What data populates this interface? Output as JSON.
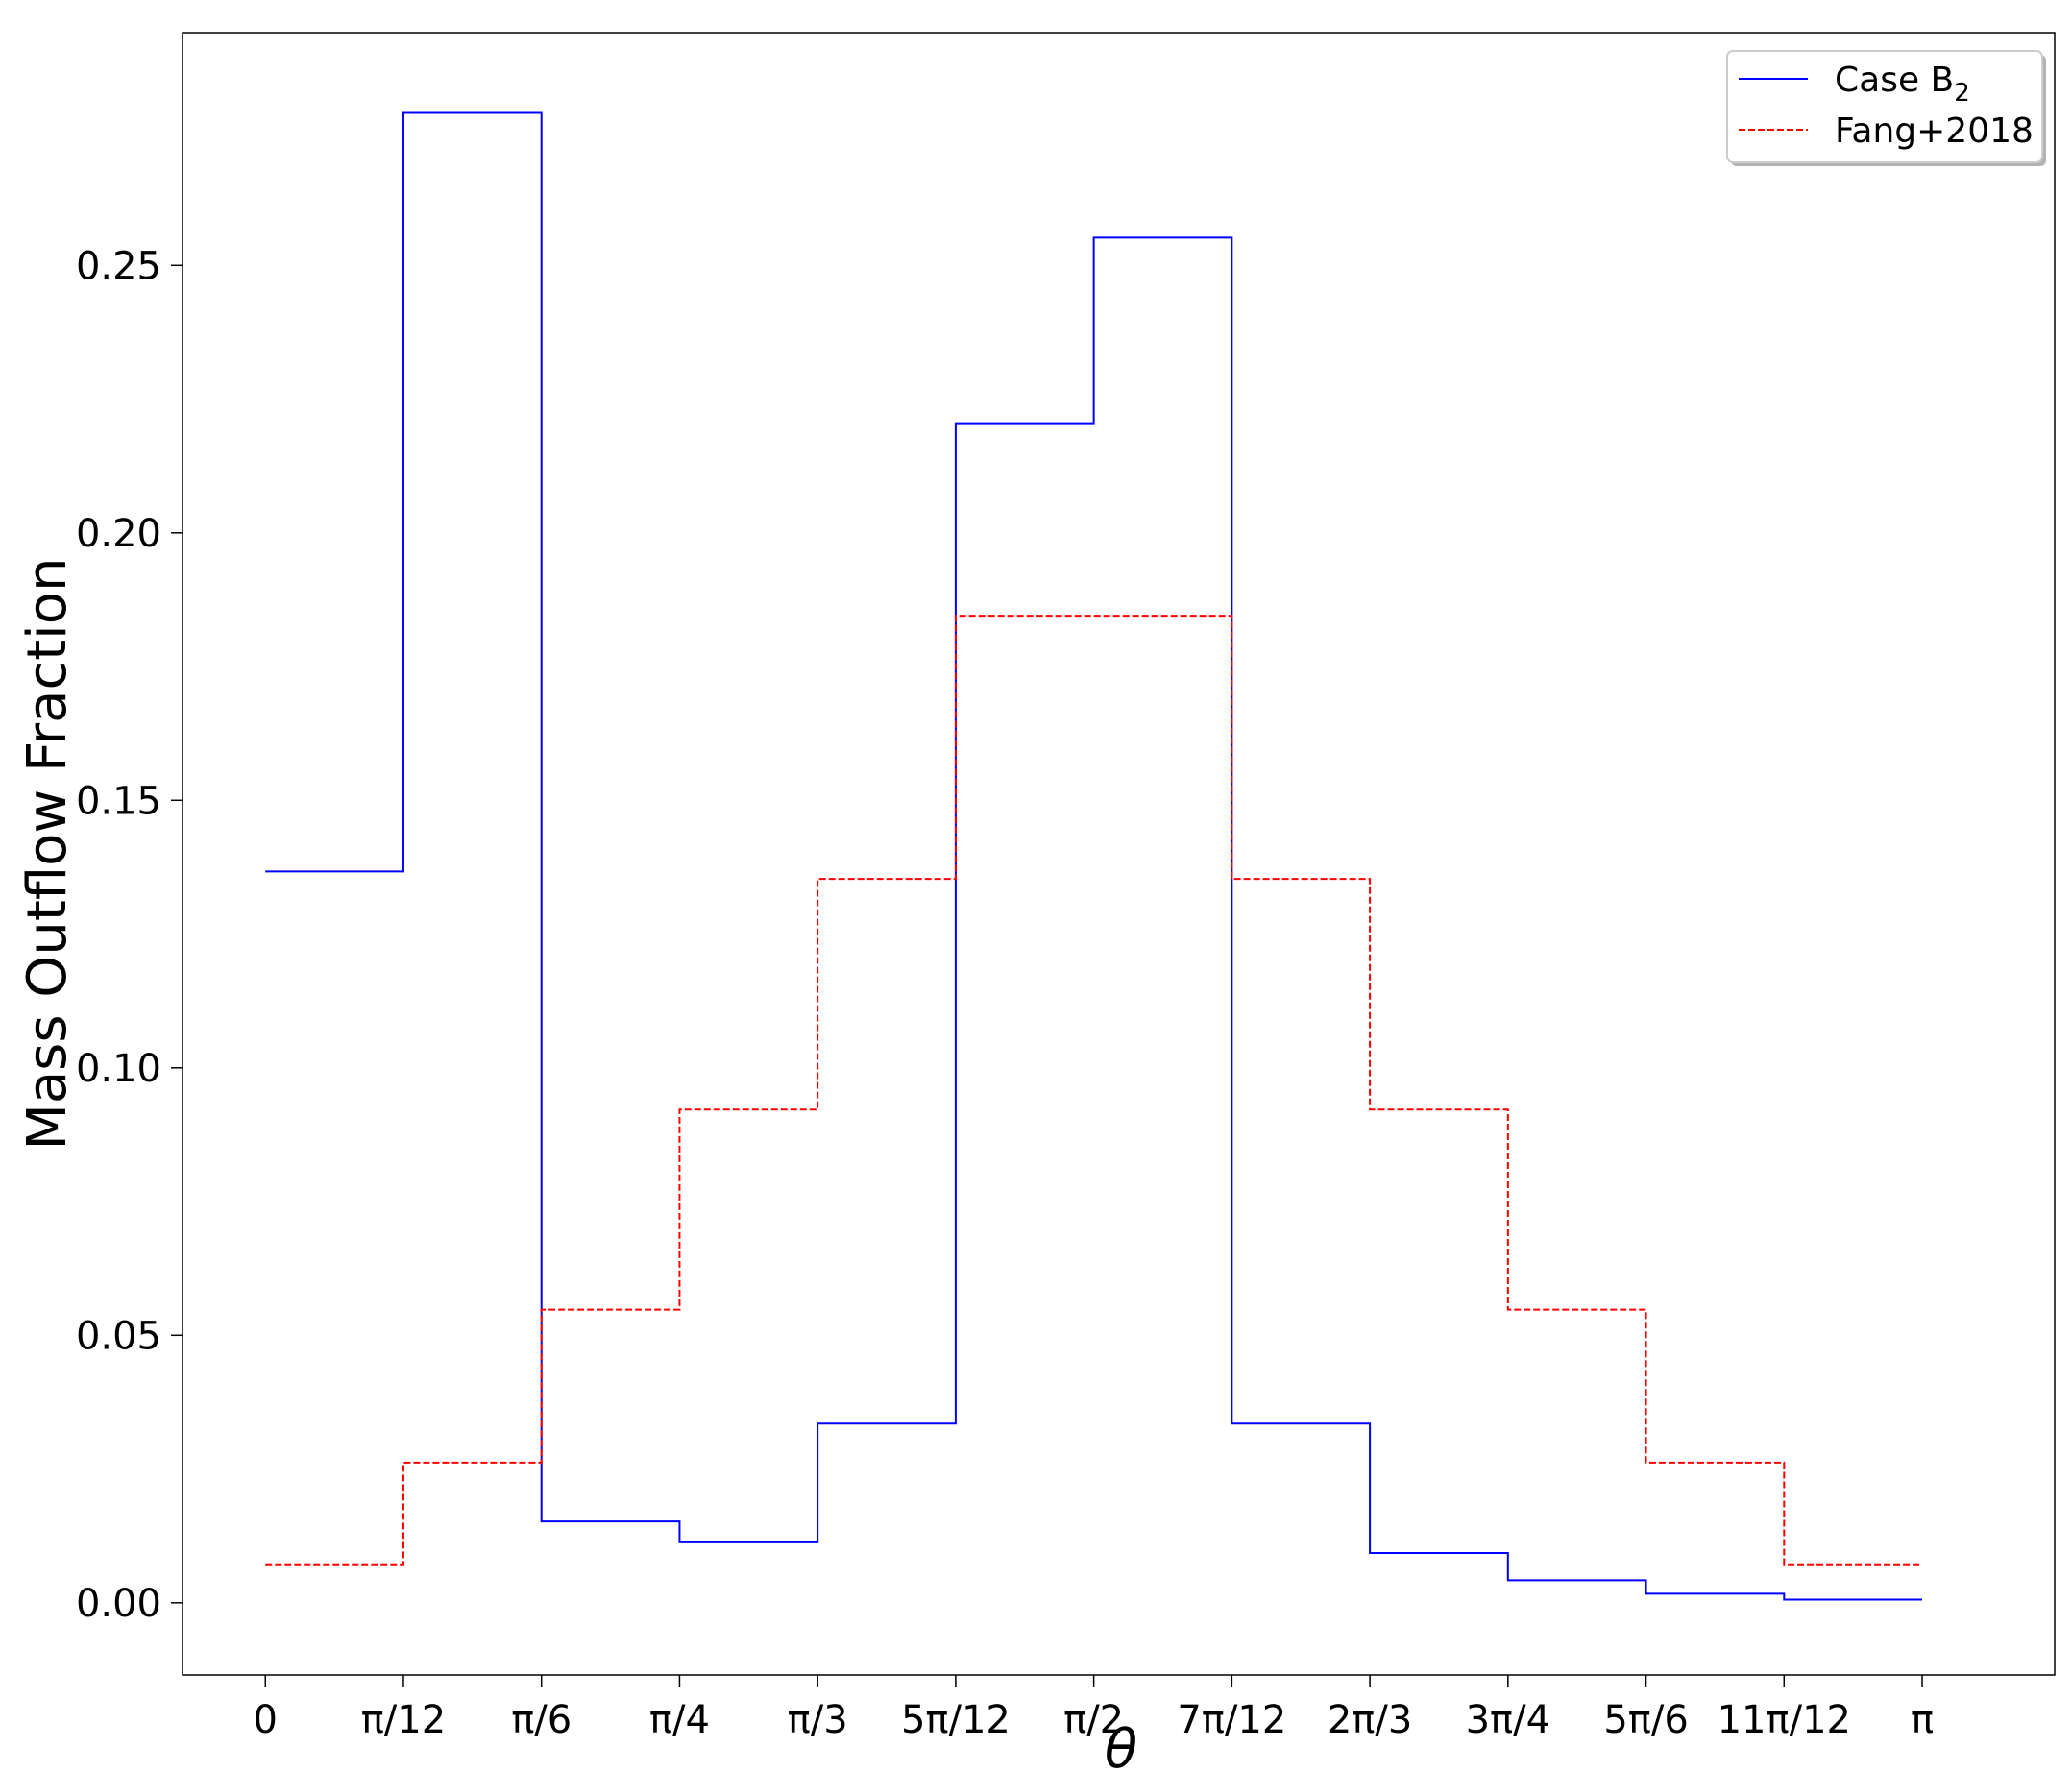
{
  "chart_data": {
    "type": "line",
    "drawstyle": "steps",
    "title": "",
    "xlabel": "θ",
    "ylabel": "Mass Outflow Fraction",
    "x_tick_labels": [
      "0",
      "π/12",
      "π/6",
      "π/4",
      "π/3",
      "5π/12",
      "π/2",
      "7π/12",
      "2π/3",
      "3π/4",
      "5π/6",
      "11π/12",
      "π"
    ],
    "x_tick_values_in_pi": [
      0,
      0.08333,
      0.16667,
      0.25,
      0.33333,
      0.41667,
      0.5,
      0.58333,
      0.66667,
      0.75,
      0.83333,
      0.91667,
      1.0
    ],
    "xlim_in_pi": [
      -0.05,
      1.08
    ],
    "y_ticks": [
      0.0,
      0.05,
      0.1,
      0.15,
      0.2,
      0.25
    ],
    "y_tick_labels": [
      "0.00",
      "0.05",
      "0.10",
      "0.15",
      "0.20",
      "0.25"
    ],
    "ylim": [
      -0.0135,
      0.2935
    ],
    "grid": false,
    "legend_position": "top-right",
    "series": [
      {
        "name": "Case B",
        "name_subscript": "2",
        "color": "#0000ff",
        "linestyle": "solid",
        "values": [
          0.1367,
          0.2785,
          0.0152,
          0.0113,
          0.0335,
          0.2205,
          0.2552,
          0.0335,
          0.0093,
          0.0042,
          0.0017,
          0.0006
        ]
      },
      {
        "name": "Fang+2018",
        "color": "#ff0000",
        "linestyle": "dashed",
        "values": [
          0.0072,
          0.0262,
          0.0548,
          0.0922,
          0.1353,
          0.1845,
          0.1845,
          0.1353,
          0.0922,
          0.0548,
          0.0262,
          0.0072
        ]
      }
    ]
  }
}
